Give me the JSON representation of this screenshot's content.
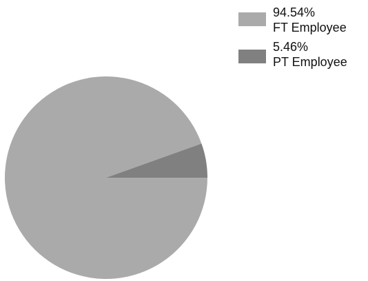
{
  "chart_data": {
    "type": "pie",
    "title": "",
    "series": [
      {
        "name": "",
        "values": [
          94.54,
          5.46
        ]
      }
    ],
    "categories": [
      "FT Employee",
      "PT Employee"
    ],
    "legend": {
      "position": "top-right",
      "entries": [
        {
          "percent_label": "94.54%",
          "label": "FT Employee",
          "color": "#aaaaaa"
        },
        {
          "percent_label": "5.46%",
          "label": "PT Employee",
          "color": "#808080"
        }
      ]
    },
    "colors": [
      "#aaaaaa",
      "#808080"
    ]
  }
}
